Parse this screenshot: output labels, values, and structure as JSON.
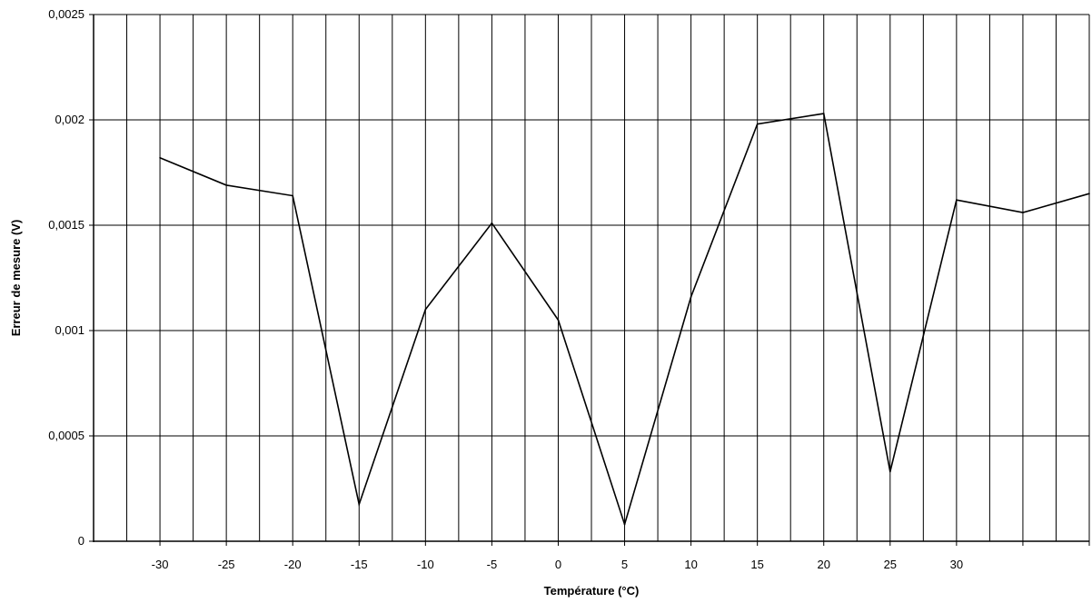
{
  "chart_data": {
    "type": "line",
    "xlabel": "Température (°C)",
    "ylabel": "Erreur de mesure (V)",
    "x": [
      -30,
      -25,
      -20,
      -15,
      -10,
      -5,
      0,
      5,
      10,
      15,
      20,
      25,
      30,
      35,
      40
    ],
    "x_tick_labels": [
      "-30",
      "-25",
      "-20",
      "-15",
      "-10",
      "-5",
      "0",
      "5",
      "10",
      "15",
      "20",
      "25",
      "30",
      "",
      ""
    ],
    "series": [
      {
        "values": [
          0.00182,
          0.00169,
          0.00164,
          0.000175,
          0.0011,
          0.00151,
          0.00105,
          8e-05,
          0.00116,
          0.00198,
          0.00203,
          0.00033,
          0.00162,
          0.00156,
          0.00165
        ],
        "color": "#000000"
      }
    ],
    "ylim": [
      0,
      0.0025
    ],
    "y_ticks": [
      0,
      0.0005,
      0.001,
      0.0015,
      0.002,
      0.0025
    ],
    "y_tick_labels": [
      "0",
      "0,0005",
      "0,001",
      "0,0015",
      "0,002",
      "0,0025"
    ],
    "grid": {
      "horizontal": true,
      "vertical": true
    },
    "legend": "none"
  }
}
